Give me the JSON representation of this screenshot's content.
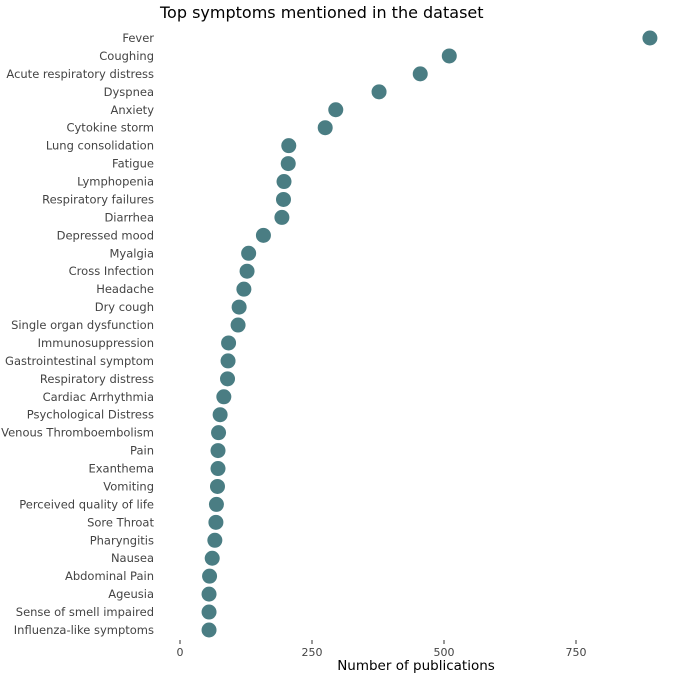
{
  "chart_data": {
    "type": "scatter",
    "title": "Top symptoms mentioned in the dataset",
    "xlabel": "Number of publications",
    "ylabel": "",
    "xlim": [
      0,
      900
    ],
    "xticks": [
      0,
      250,
      500,
      750
    ],
    "grid": false,
    "legend": "none",
    "point_color": "#4a7d83",
    "categories": [
      "Fever",
      "Coughing",
      "Acute respiratory distress",
      "Dyspnea",
      "Anxiety",
      "Cytokine storm",
      "Lung consolidation",
      "Fatigue",
      "Lymphopenia",
      "Respiratory failures",
      "Diarrhea",
      "Depressed mood",
      "Myalgia",
      "Cross Infection",
      "Headache",
      "Dry cough",
      "Single organ dysfunction",
      "Immunosuppression",
      "Gastrointestinal symptom",
      "Respiratory distress",
      "Cardiac Arrhythmia",
      "Psychological Distress",
      "Venous Thromboembolism",
      "Pain",
      "Exanthema",
      "Vomiting",
      "Perceived quality of life",
      "Sore Throat",
      "Pharyngitis",
      "Nausea",
      "Abdominal Pain",
      "Ageusia",
      "Sense of smell impaired",
      "Influenza-like symptoms"
    ],
    "values": [
      890,
      510,
      455,
      377,
      295,
      275,
      206,
      205,
      197,
      196,
      193,
      158,
      130,
      127,
      121,
      112,
      110,
      92,
      91,
      90,
      83,
      76,
      73,
      72,
      72,
      71,
      69,
      68,
      66,
      61,
      56,
      55,
      55,
      55
    ]
  }
}
